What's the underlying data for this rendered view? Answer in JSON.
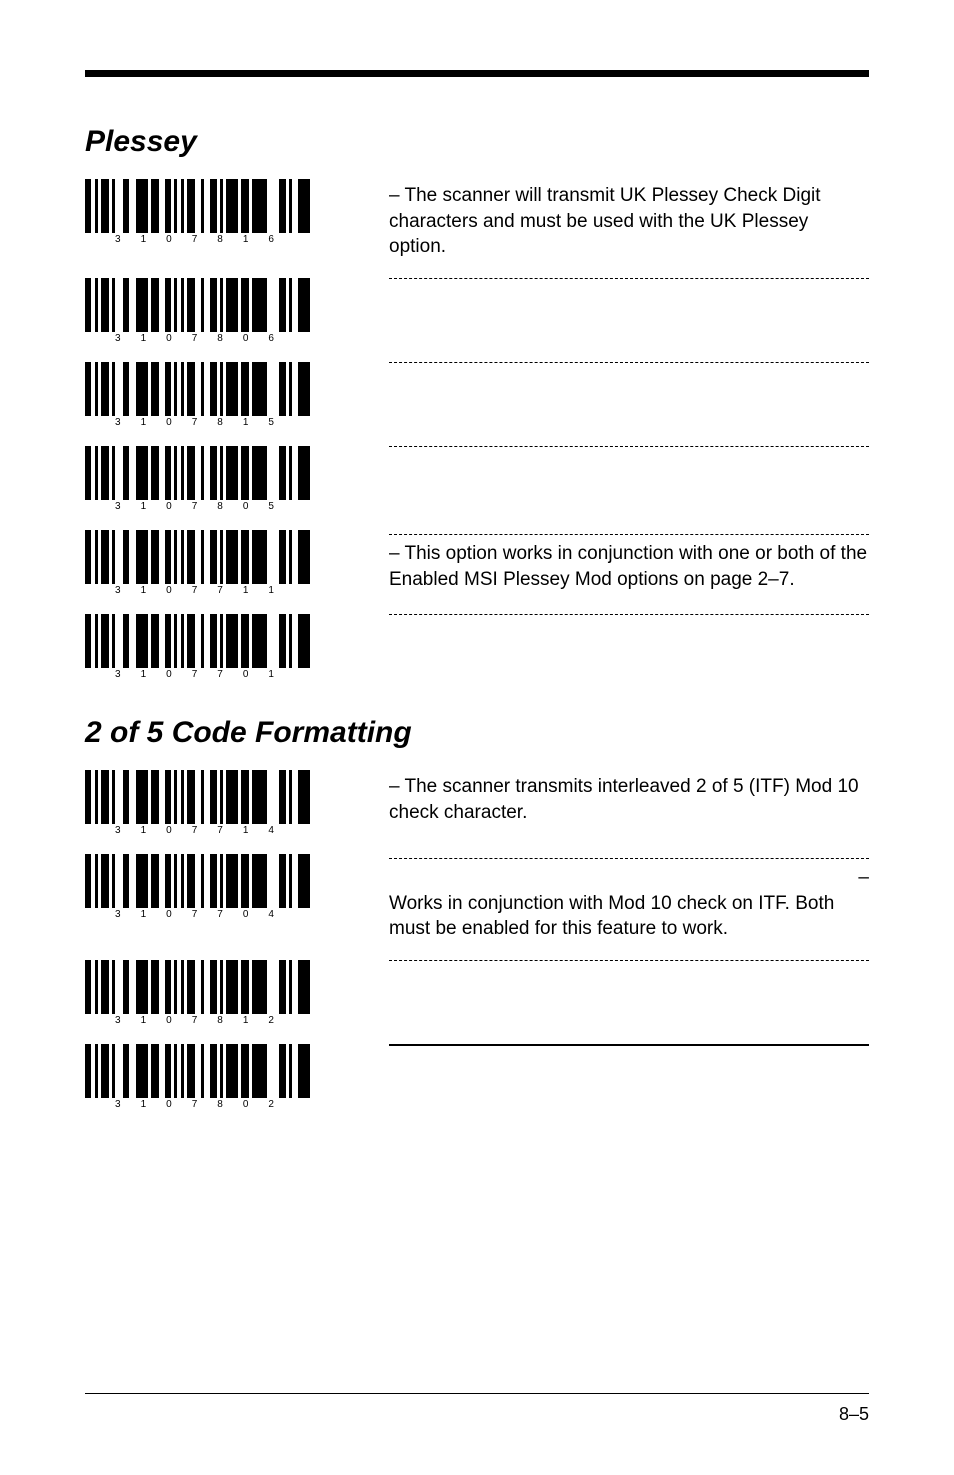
{
  "page_number": "8–5",
  "section1": {
    "title": "Plessey",
    "rows": [
      {
        "digits": [
          "3",
          "1",
          "0",
          "7",
          "8",
          "1",
          "6"
        ],
        "text": " – The scanner will transmit UK Plessey Check Digit characters and must be used with the UK Plessey option."
      },
      {
        "digits": [
          "3",
          "1",
          "0",
          "7",
          "8",
          "0",
          "6"
        ],
        "text": ""
      },
      {
        "digits": [
          "3",
          "1",
          "0",
          "7",
          "8",
          "1",
          "5"
        ],
        "text": ""
      },
      {
        "digits": [
          "3",
          "1",
          "0",
          "7",
          "8",
          "0",
          "5"
        ],
        "text": ""
      },
      {
        "digits": [
          "3",
          "1",
          "0",
          "7",
          "7",
          "1",
          "1"
        ],
        "text": " – This option works in conjunction with one or both of the Enabled MSI Plessey Mod options on page 2–7."
      },
      {
        "digits": [
          "3",
          "1",
          "0",
          "7",
          "7",
          "0",
          "1"
        ],
        "text": ""
      }
    ]
  },
  "section2": {
    "title": "2 of 5 Code Formatting",
    "rows": [
      {
        "digits": [
          "3",
          "1",
          "0",
          "7",
          "7",
          "1",
          "4"
        ],
        "text": " – The scanner transmits interleaved 2 of 5 (ITF) Mod 10 check character."
      },
      {
        "digits": [
          "3",
          "1",
          "0",
          "7",
          "7",
          "0",
          "4"
        ],
        "text": " – Works in conjunction with Mod 10 check on ITF. Both must be enabled for this feature to work."
      },
      {
        "digits": [
          "3",
          "1",
          "0",
          "7",
          "8",
          "1",
          "2"
        ],
        "text": ""
      },
      {
        "digits": [
          "3",
          "1",
          "0",
          "7",
          "8",
          "0",
          "2"
        ],
        "text": ""
      }
    ]
  },
  "barcode_pattern": [
    6,
    4,
    3,
    3,
    8,
    3,
    3,
    8,
    6,
    7,
    12,
    3,
    8,
    6,
    6,
    3,
    3,
    4,
    3,
    3,
    8,
    6,
    3,
    6,
    7,
    3,
    3,
    3,
    12,
    3,
    8,
    3,
    15,
    12,
    7,
    3,
    3,
    6,
    12,
    6
  ],
  "colors": {
    "page_bg": "#ffffff",
    "ink": "#000000",
    "sep_dash": "#000000"
  },
  "typography": {
    "heading_size_pt": 22,
    "body_size_pt": 14,
    "digit_size_pt": 7
  }
}
